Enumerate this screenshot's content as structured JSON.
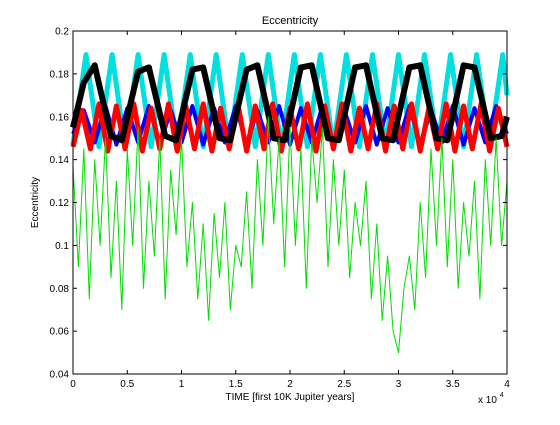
{
  "chart_data": {
    "type": "line",
    "title": "Eccentricity",
    "xlabel": "TIME [first 10K Jupiter years]",
    "ylabel": "Eccentricity",
    "x_multiplier": "x 10",
    "x_multiplier_exp": "4",
    "xlim": [
      0,
      4
    ],
    "ylim": [
      0.04,
      0.2
    ],
    "xticks": [
      "0",
      "0.5",
      "1",
      "1.5",
      "2",
      "2.5",
      "3",
      "3.5",
      "4"
    ],
    "yticks": [
      "0.04",
      "0.06",
      "0.08",
      "0.1",
      "0.12",
      "0.14",
      "0.16",
      "0.18",
      "0.2"
    ],
    "grid": false,
    "series": [
      {
        "color": "#00e0e0",
        "description": "oscillates between 0.145 and 0.189, period ~0.48",
        "x": [
          0,
          0.12,
          0.24,
          0.36,
          0.48,
          0.6,
          0.72,
          0.84,
          0.96,
          1.08,
          1.2,
          1.32,
          1.44,
          1.56,
          1.68,
          1.8,
          1.92,
          2.04,
          2.16,
          2.28,
          2.4,
          2.52,
          2.64,
          2.76,
          2.88,
          3.0,
          3.12,
          3.24,
          3.36,
          3.48,
          3.6,
          3.72,
          3.84,
          3.96,
          4.0
        ],
        "y": [
          0.147,
          0.189,
          0.146,
          0.189,
          0.146,
          0.189,
          0.146,
          0.189,
          0.146,
          0.189,
          0.146,
          0.189,
          0.146,
          0.189,
          0.146,
          0.189,
          0.146,
          0.189,
          0.146,
          0.189,
          0.146,
          0.189,
          0.146,
          0.189,
          0.146,
          0.189,
          0.146,
          0.189,
          0.146,
          0.189,
          0.146,
          0.189,
          0.146,
          0.189,
          0.17
        ]
      },
      {
        "color": "#0000ff",
        "x": [
          0,
          0.1,
          0.2,
          0.3,
          0.4,
          0.5,
          0.6,
          0.7,
          0.8,
          0.9,
          1.0,
          1.1,
          1.2,
          1.3,
          1.4,
          1.5,
          1.6,
          1.7,
          1.8,
          1.9,
          2.0,
          2.1,
          2.2,
          2.3,
          2.4,
          2.5,
          2.6,
          2.7,
          2.8,
          2.9,
          3.0,
          3.1,
          3.2,
          3.3,
          3.4,
          3.5,
          3.6,
          3.7,
          3.8,
          3.9,
          4.0
        ],
        "y": [
          0.152,
          0.163,
          0.148,
          0.165,
          0.147,
          0.164,
          0.148,
          0.165,
          0.147,
          0.163,
          0.148,
          0.165,
          0.147,
          0.164,
          0.148,
          0.165,
          0.147,
          0.163,
          0.148,
          0.165,
          0.147,
          0.164,
          0.148,
          0.165,
          0.147,
          0.163,
          0.148,
          0.165,
          0.147,
          0.164,
          0.148,
          0.165,
          0.147,
          0.163,
          0.148,
          0.165,
          0.147,
          0.164,
          0.148,
          0.165,
          0.152
        ]
      },
      {
        "color": "#ff0000",
        "x": [
          0,
          0.08,
          0.16,
          0.24,
          0.32,
          0.4,
          0.48,
          0.56,
          0.64,
          0.72,
          0.8,
          0.88,
          0.96,
          1.04,
          1.12,
          1.2,
          1.28,
          1.36,
          1.44,
          1.52,
          1.6,
          1.68,
          1.76,
          1.84,
          1.92,
          2.0,
          2.08,
          2.16,
          2.24,
          2.32,
          2.4,
          2.48,
          2.56,
          2.64,
          2.72,
          2.8,
          2.88,
          2.96,
          3.04,
          3.12,
          3.2,
          3.28,
          3.36,
          3.44,
          3.52,
          3.6,
          3.68,
          3.76,
          3.84,
          3.92,
          4.0
        ],
        "y": [
          0.146,
          0.163,
          0.145,
          0.166,
          0.144,
          0.165,
          0.145,
          0.166,
          0.144,
          0.164,
          0.145,
          0.166,
          0.144,
          0.165,
          0.145,
          0.166,
          0.144,
          0.164,
          0.145,
          0.166,
          0.144,
          0.165,
          0.145,
          0.166,
          0.144,
          0.164,
          0.145,
          0.166,
          0.144,
          0.165,
          0.145,
          0.166,
          0.144,
          0.164,
          0.145,
          0.166,
          0.144,
          0.165,
          0.145,
          0.166,
          0.144,
          0.164,
          0.145,
          0.166,
          0.144,
          0.165,
          0.145,
          0.166,
          0.144,
          0.164,
          0.146
        ]
      },
      {
        "color": "#000000",
        "description": "oscillates between 0.148 and 0.185, period ~0.5",
        "x": [
          0,
          0.1,
          0.2,
          0.35,
          0.45,
          0.6,
          0.7,
          0.85,
          0.95,
          1.1,
          1.2,
          1.35,
          1.45,
          1.6,
          1.7,
          1.85,
          1.95,
          2.1,
          2.2,
          2.35,
          2.45,
          2.6,
          2.7,
          2.85,
          2.95,
          3.1,
          3.2,
          3.35,
          3.45,
          3.6,
          3.7,
          3.85,
          3.95,
          4.0
        ],
        "y": [
          0.155,
          0.176,
          0.184,
          0.151,
          0.149,
          0.181,
          0.183,
          0.151,
          0.149,
          0.182,
          0.183,
          0.15,
          0.149,
          0.182,
          0.184,
          0.15,
          0.149,
          0.183,
          0.184,
          0.15,
          0.149,
          0.183,
          0.184,
          0.15,
          0.149,
          0.183,
          0.184,
          0.15,
          0.149,
          0.184,
          0.183,
          0.15,
          0.151,
          0.16
        ]
      },
      {
        "color": "#00dd00",
        "x": [
          0,
          0.05,
          0.1,
          0.15,
          0.2,
          0.25,
          0.3,
          0.35,
          0.4,
          0.45,
          0.5,
          0.55,
          0.6,
          0.65,
          0.7,
          0.75,
          0.8,
          0.85,
          0.9,
          0.95,
          1.0,
          1.05,
          1.1,
          1.15,
          1.2,
          1.25,
          1.3,
          1.35,
          1.4,
          1.45,
          1.5,
          1.55,
          1.6,
          1.65,
          1.7,
          1.75,
          1.8,
          1.85,
          1.9,
          1.95,
          2.0,
          2.05,
          2.1,
          2.15,
          2.2,
          2.25,
          2.3,
          2.35,
          2.4,
          2.45,
          2.5,
          2.55,
          2.6,
          2.65,
          2.7,
          2.75,
          2.8,
          2.85,
          2.9,
          2.95,
          3.0,
          3.05,
          3.1,
          3.15,
          3.2,
          3.25,
          3.3,
          3.35,
          3.4,
          3.45,
          3.5,
          3.55,
          3.6,
          3.65,
          3.7,
          3.75,
          3.8,
          3.85,
          3.9,
          3.95,
          4.0
        ],
        "y": [
          0.137,
          0.09,
          0.145,
          0.075,
          0.14,
          0.1,
          0.15,
          0.085,
          0.13,
          0.07,
          0.145,
          0.1,
          0.155,
          0.08,
          0.13,
          0.095,
          0.15,
          0.075,
          0.135,
          0.105,
          0.15,
          0.09,
          0.12,
          0.075,
          0.11,
          0.065,
          0.115,
          0.085,
          0.12,
          0.07,
          0.1,
          0.09,
          0.125,
          0.08,
          0.14,
          0.1,
          0.16,
          0.11,
          0.15,
          0.09,
          0.155,
          0.1,
          0.145,
          0.08,
          0.15,
          0.12,
          0.155,
          0.09,
          0.14,
          0.1,
          0.135,
          0.085,
          0.12,
          0.1,
          0.13,
          0.075,
          0.11,
          0.065,
          0.095,
          0.06,
          0.05,
          0.08,
          0.095,
          0.07,
          0.12,
          0.085,
          0.145,
          0.1,
          0.15,
          0.09,
          0.14,
          0.08,
          0.12,
          0.095,
          0.13,
          0.075,
          0.14,
          0.1,
          0.15,
          0.1,
          0.13
        ]
      }
    ]
  }
}
